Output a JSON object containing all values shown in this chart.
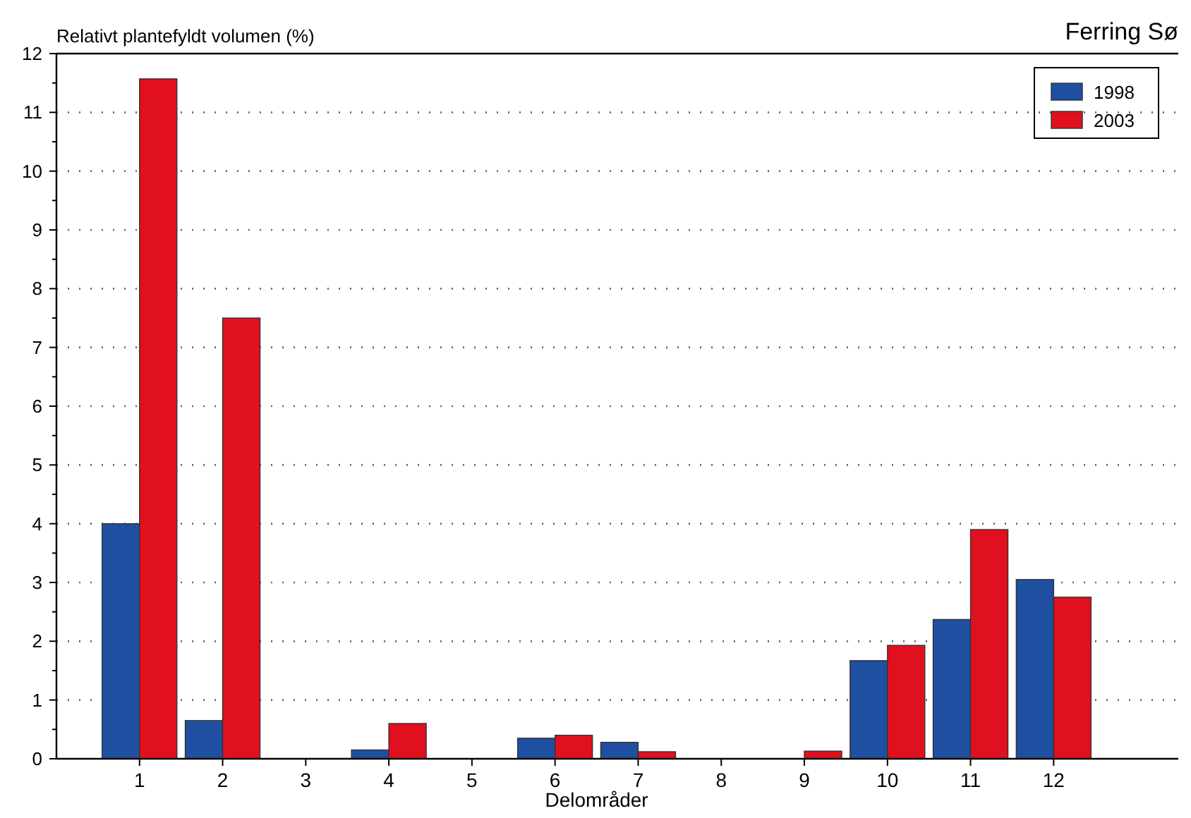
{
  "chart_data": {
    "type": "bar",
    "title": "Ferring Sø",
    "xlabel": "Delområder",
    "ylabel": "Relativt plantefyldt volumen (%)",
    "categories": [
      "1",
      "2",
      "3",
      "4",
      "5",
      "6",
      "7",
      "8",
      "9",
      "10",
      "11",
      "12"
    ],
    "series": [
      {
        "name": "1998",
        "color": "#1f4fa0",
        "values": [
          4.0,
          0.65,
          0,
          0.15,
          0,
          0.35,
          0.28,
          0,
          0,
          1.67,
          2.37,
          3.05
        ]
      },
      {
        "name": "2003",
        "color": "#e0101e",
        "values": [
          11.57,
          7.5,
          0,
          0.6,
          0,
          0.4,
          0.12,
          null,
          0.13,
          1.93,
          3.9,
          2.75
        ]
      }
    ],
    "ylim": [
      0,
      12
    ],
    "yticks": [
      0,
      1,
      2,
      3,
      4,
      5,
      6,
      7,
      8,
      9,
      10,
      11,
      12
    ],
    "grid": "y",
    "legend": "top right"
  }
}
